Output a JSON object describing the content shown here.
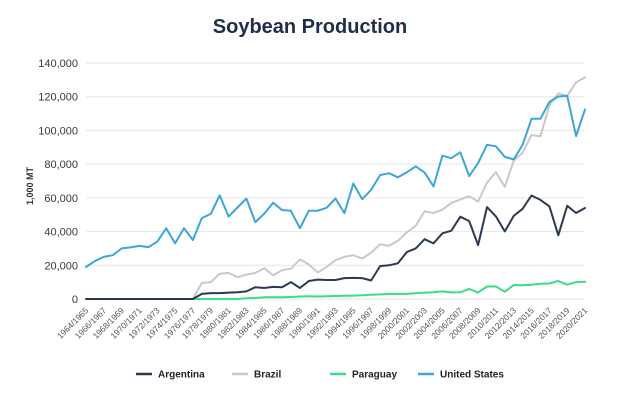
{
  "chart_data": {
    "type": "line",
    "title": "Soybean Production",
    "xlabel": "",
    "ylabel": "1,000 MT",
    "ylim": [
      0,
      140000
    ],
    "yticks": [
      0,
      20000,
      40000,
      60000,
      80000,
      100000,
      120000,
      140000
    ],
    "ytick_labels": [
      "0",
      "20,000",
      "40,000",
      "60,000",
      "80,000",
      "100,000",
      "120,000",
      "140,000"
    ],
    "x": [
      "1964/1965",
      "1965/1966",
      "1966/1967",
      "1967/1968",
      "1968/1969",
      "1969/1970",
      "1970/1971",
      "1971/1972",
      "1972/1973",
      "1973/1974",
      "1974/1975",
      "1975/1976",
      "1976/1977",
      "1977/1978",
      "1978/1979",
      "1979/1980",
      "1980/1981",
      "1981/1982",
      "1982/1983",
      "1983/1984",
      "1984/1985",
      "1985/1986",
      "1986/1987",
      "1987/1988",
      "1988/1989",
      "1989/1990",
      "1990/1991",
      "1991/1992",
      "1992/1993",
      "1993/1994",
      "1994/1995",
      "1995/1996",
      "1996/1997",
      "1997/1998",
      "1998/1999",
      "1999/2000",
      "2000/2001",
      "2001/2002",
      "2002/2003",
      "2003/2004",
      "2004/2005",
      "2005/2006",
      "2006/2007",
      "2007/2008",
      "2008/2009",
      "2009/2010",
      "2010/2011",
      "2011/2012",
      "2012/2013",
      "2013/2014",
      "2014/2015",
      "2015/2016",
      "2016/2017",
      "2017/2018",
      "2018/2019",
      "2019/2020",
      "2020/2021"
    ],
    "x_tick_labels": [
      "1964/1965",
      "1966/1967",
      "1968/1969",
      "1970/1971",
      "1972/1973",
      "1974/1975",
      "1976/1977",
      "1978/1979",
      "1980/1981",
      "1982/1983",
      "1984/1985",
      "1986/1987",
      "1988/1989",
      "1990/1991",
      "1992/1993",
      "1994/1995",
      "1996/1997",
      "1998/1999",
      "2000/2001",
      "2002/2003",
      "2004/2005",
      "2006/2007",
      "2008/2009",
      "2010/2011",
      "2012/2013",
      "2014/2015",
      "2016/2017",
      "2018/2019",
      "2020/2021"
    ],
    "series": [
      {
        "name": "Argentina",
        "color": "#2b3a52",
        "values": [
          0,
          0,
          0,
          0,
          0,
          0,
          0,
          0,
          0,
          0,
          0,
          0,
          0,
          3000,
          3500,
          3500,
          3800,
          4000,
          4500,
          7000,
          6500,
          7200,
          7000,
          10000,
          6500,
          10700,
          11500,
          11300,
          11300,
          12400,
          12500,
          12400,
          11000,
          19500,
          20000,
          21200,
          27800,
          30000,
          35500,
          33000,
          39000,
          40500,
          48800,
          46200,
          32000,
          54500,
          49000,
          40100,
          49300,
          53500,
          61400,
          58800,
          55000,
          37800,
          55300,
          51000,
          54000
        ]
      },
      {
        "name": "Brazil",
        "color": "#c9c9c9",
        "values": [
          0,
          0,
          0,
          0,
          0,
          0,
          0,
          0,
          0,
          0,
          0,
          0,
          0,
          9500,
          10000,
          15000,
          15500,
          13000,
          14500,
          15500,
          18300,
          14000,
          17000,
          18000,
          23500,
          20500,
          15700,
          19000,
          23000,
          25000,
          26000,
          24000,
          27500,
          32500,
          31500,
          34500,
          39500,
          43500,
          52000,
          51000,
          53000,
          57000,
          59000,
          61000,
          57800,
          69000,
          75300,
          66500,
          82000,
          86700,
          97200,
          96500,
          114900,
          122000,
          120500,
          128500,
          131500
        ]
      },
      {
        "name": "Paraguay",
        "color": "#3ddc84",
        "values": [
          0,
          0,
          0,
          0,
          0,
          0,
          0,
          0,
          0,
          0,
          0,
          0,
          0,
          0,
          0,
          0,
          0,
          0,
          500,
          600,
          1000,
          1000,
          1000,
          1200,
          1500,
          1600,
          1500,
          1600,
          1800,
          1900,
          2000,
          2200,
          2500,
          2700,
          3000,
          3000,
          3000,
          3400,
          3800,
          4000,
          4500,
          3900,
          4000,
          6000,
          3900,
          7400,
          7500,
          4300,
          8300,
          8200,
          8400,
          9000,
          9200,
          10700,
          8500,
          10000,
          10200
        ]
      },
      {
        "name": "United States",
        "color": "#3ba6d8",
        "values": [
          19000,
          22500,
          25000,
          26000,
          30000,
          30600,
          31500,
          30800,
          34000,
          42000,
          33000,
          42000,
          35000,
          48000,
          50500,
          61500,
          48900,
          54300,
          59600,
          45600,
          50600,
          57100,
          52800,
          52300,
          42000,
          52300,
          52400,
          54100,
          59600,
          50900,
          68500,
          59200,
          64700,
          73500,
          74600,
          72200,
          75100,
          78700,
          75000,
          66800,
          85000,
          83500,
          87000,
          72900,
          80700,
          91500,
          90600,
          84300,
          82800,
          91400,
          106900,
          106900,
          116900,
          120100,
          120500,
          96700,
          112500
        ]
      }
    ],
    "legend": {
      "placement": "bottom",
      "labels": [
        "Argentina",
        "Brazil",
        "Paraguay",
        "United States"
      ]
    }
  }
}
